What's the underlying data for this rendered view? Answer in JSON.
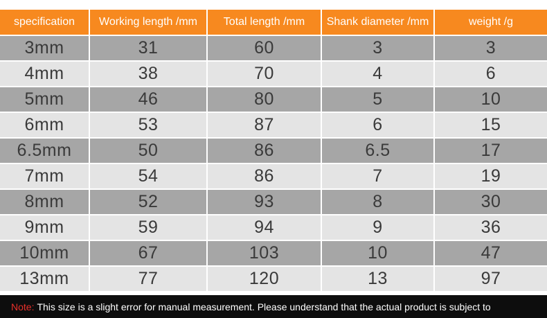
{
  "table": {
    "header": [
      "specification",
      "Working length /mm",
      "Total length /mm",
      "Shank diameter /mm",
      "weight  /g"
    ],
    "rows": [
      [
        "3mm",
        "31",
        "60",
        "3",
        "3"
      ],
      [
        "4mm",
        "38",
        "70",
        "4",
        "6"
      ],
      [
        "5mm",
        "46",
        "80",
        "5",
        "10"
      ],
      [
        "6mm",
        "53",
        "87",
        "6",
        "15"
      ],
      [
        "6.5mm",
        "50",
        "86",
        "6.5",
        "17"
      ],
      [
        "7mm",
        "54",
        "86",
        "7",
        "19"
      ],
      [
        "8mm",
        "52",
        "93",
        "8",
        "30"
      ],
      [
        "9mm",
        "59",
        "94",
        "9",
        "36"
      ],
      [
        "10mm",
        "67",
        "103",
        "10",
        "47"
      ],
      [
        "13mm",
        "77",
        "120",
        "13",
        "97"
      ]
    ]
  },
  "footer": {
    "label": "Note:",
    "text": "This size is a slight error for manual measurement. Please understand that the actual product is subject to"
  }
}
